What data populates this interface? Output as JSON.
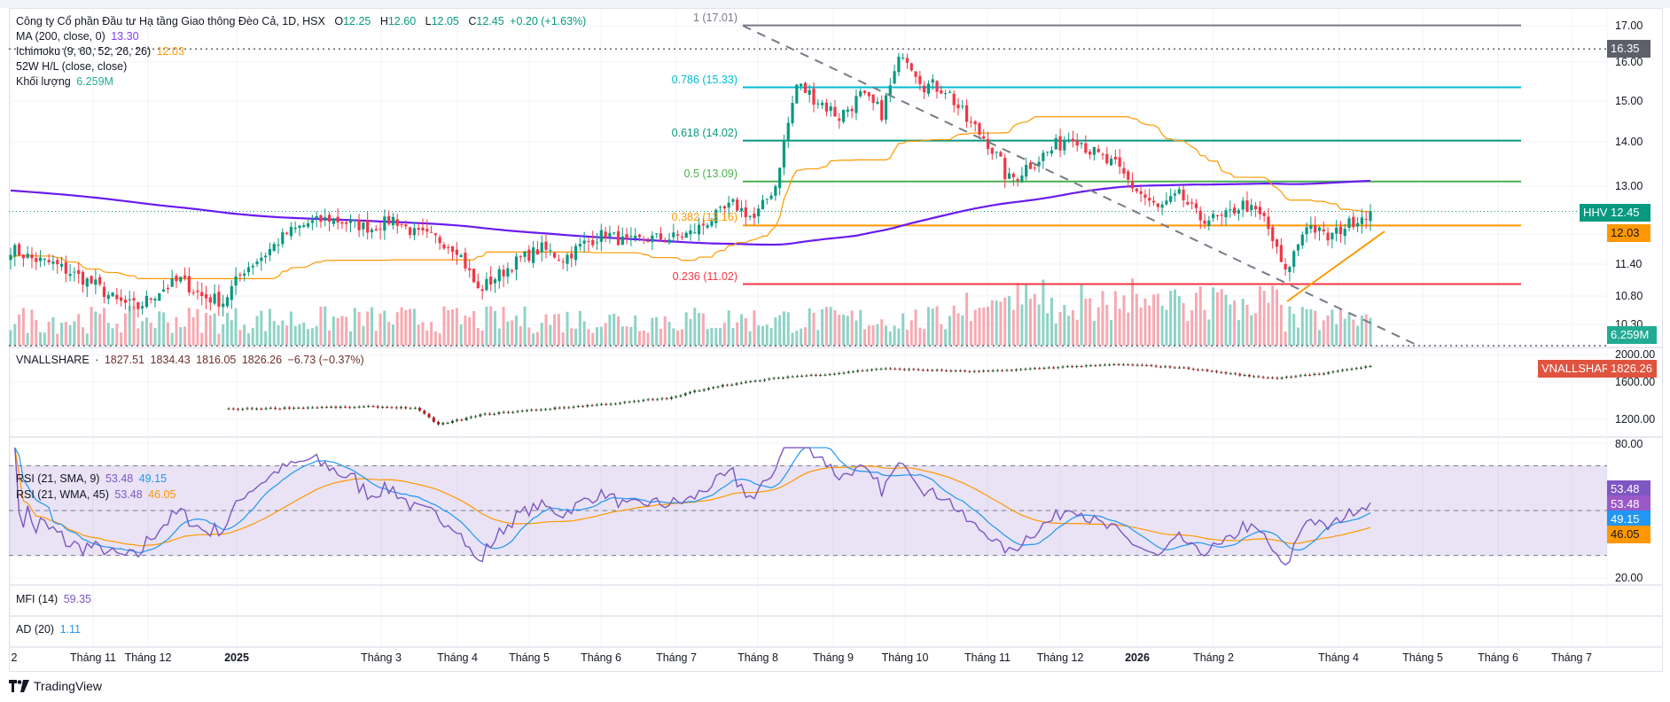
{
  "legend": {
    "title": "Công ty Cổ phần Đầu tư Hạ tầng Giao thông Đèo Cả, 1D, HSX",
    "open_label": "O",
    "open": "12.25",
    "high_label": "H",
    "high": "12.60",
    "low_label": "L",
    "low": "12.05",
    "close_label": "C",
    "close": "12.45",
    "change": "+0.20 (+1.63%)",
    "ma_label": "MA (200, close, 0)",
    "ma_value": "13.30",
    "ichimoku_label": "Ichimoku (9, 60, 52, 26, 26)",
    "ichimoku_value": "12.03",
    "hl_label": "52W H/L (close, close)",
    "volume_label": "Khối lượng",
    "volume_value": "6.259M"
  },
  "index_legend": {
    "name": "VNALLSHARE",
    "dot": "·",
    "open": "1827.51",
    "high": "1834.43",
    "low": "1816.05",
    "close": "1826.26",
    "change": "−6.73 (−0.37%)"
  },
  "rsi_legend": [
    {
      "label": "RSI (21, SMA, 9)",
      "v1": "53.48",
      "v2": "49.15"
    },
    {
      "label": "RSI (21, WMA, 45)",
      "v1": "53.48",
      "v2": "46.05"
    }
  ],
  "mfi_legend": {
    "label": "MFI (14)",
    "value": "59.35"
  },
  "ad_legend": {
    "label": "AD (20)",
    "value": "1.11"
  },
  "price_axis": [
    "17.00",
    "16.00",
    "15.00",
    "14.00",
    "13.00",
    "11.40",
    "10.80",
    "10.30"
  ],
  "index_axis": [
    "2000.00",
    "1600.00",
    "1200.00"
  ],
  "rsi_axis": [
    "80.00",
    "20.00"
  ],
  "badges": {
    "high_line": "16.35",
    "hhv_label": "HHV",
    "last_price": "12.45",
    "ichimoku": "12.03",
    "volume": "6.259M",
    "index_name": "VNALLSHARE",
    "index_value": "1826.26",
    "rsi1": "53.48",
    "rsi2": "53.48",
    "rsi_sma": "49.15",
    "rsi_wma": "46.05"
  },
  "fib_levels": [
    {
      "label": "1 (17.01)",
      "price": 17.01,
      "color": "#787b86"
    },
    {
      "label": "0.786 (15.33)",
      "price": 15.33,
      "color": "#00bcd4"
    },
    {
      "label": "0.618 (14.02)",
      "price": 14.02,
      "color": "#089981"
    },
    {
      "label": "0.5 (13.09)",
      "price": 13.09,
      "color": "#4caf50"
    },
    {
      "label": "0.382 (12.16)",
      "price": 12.16,
      "color": "#ff9800"
    },
    {
      "label": "0.236 (11.02)",
      "price": 11.02,
      "color": "#f23645"
    }
  ],
  "time_axis": [
    {
      "label": "2",
      "bold": false
    },
    {
      "label": "Tháng 11",
      "bold": false
    },
    {
      "label": "Tháng 12",
      "bold": false
    },
    {
      "label": "2025",
      "bold": true
    },
    {
      "label": "Tháng 3",
      "bold": false
    },
    {
      "label": "Tháng 4",
      "bold": false
    },
    {
      "label": "Tháng 5",
      "bold": false
    },
    {
      "label": "Tháng 6",
      "bold": false
    },
    {
      "label": "Tháng 7",
      "bold": false
    },
    {
      "label": "Tháng 8",
      "bold": false
    },
    {
      "label": "Tháng 9",
      "bold": false
    },
    {
      "label": "Tháng 10",
      "bold": false
    },
    {
      "label": "Tháng 11",
      "bold": false
    },
    {
      "label": "Tháng 12",
      "bold": false
    },
    {
      "label": "2026",
      "bold": true
    },
    {
      "label": "Tháng 2",
      "bold": false
    },
    {
      "label": "Tháng 4",
      "bold": false
    },
    {
      "label": "Tháng 5",
      "bold": false
    },
    {
      "label": "Tháng 6",
      "bold": false
    },
    {
      "label": "Tháng 7",
      "bold": false
    }
  ],
  "logo": {
    "text": "TradingView"
  },
  "colors": {
    "up": "#089981",
    "down": "#f23645",
    "vol_up": "#8fd3c6",
    "vol_down": "#f7a9b1",
    "ma": "#6a1bef",
    "ichimoku": "#ff9800",
    "rsi": "#7e57c2",
    "rsi_sma": "#2196f3",
    "rsi_wma": "#ff9800",
    "rsi_band": "#7e57c2",
    "index_badge": "#e0533f",
    "hhv": "#089981",
    "high_badge": "#5d606b"
  },
  "chart_data": {
    "type": "candlestick",
    "symbol": "HHV",
    "price_scale": "log",
    "price_range": [
      10.3,
      17.0
    ],
    "weekly_closes": [
      11.7,
      11.5,
      11.4,
      11.2,
      11.0,
      10.7,
      10.6,
      10.9,
      11.1,
      10.8,
      10.7,
      11.3,
      11.6,
      12.0,
      12.2,
      12.3,
      12.2,
      12.1,
      12.3,
      12.0,
      11.9,
      11.7,
      10.9,
      11.2,
      11.5,
      11.7,
      11.5,
      11.8,
      12.0,
      11.8,
      11.9,
      11.9,
      12.0,
      12.3,
      12.6,
      12.3,
      13.0,
      15.4,
      15.0,
      14.6,
      15.1,
      14.7,
      16.3,
      15.4,
      15.3,
      14.5,
      14.0,
      13.1,
      13.5,
      13.8,
      14.2,
      13.7,
      13.4,
      12.9,
      12.5,
      12.8,
      12.3,
      12.3,
      12.6,
      12.3,
      11.2,
      12.2,
      11.9,
      12.2,
      12.45
    ],
    "index_weekly_closes": [
      1300,
      1305,
      1310,
      1315,
      1320,
      1318,
      1325,
      1320,
      1310,
      1150,
      1200,
      1250,
      1270,
      1290,
      1310,
      1330,
      1350,
      1370,
      1400,
      1420,
      1500,
      1560,
      1600,
      1640,
      1680,
      1700,
      1720,
      1760,
      1790,
      1780,
      1770,
      1760,
      1750,
      1760,
      1780,
      1800,
      1820,
      1830,
      1850,
      1840,
      1820,
      1800,
      1760,
      1720,
      1680,
      1660,
      1700,
      1720,
      1780,
      1826.26
    ],
    "index_range": [
      1200,
      2000
    ],
    "rsi_range": [
      20,
      80
    ],
    "rsi_bands": [
      30,
      50,
      70
    ],
    "last_volume": "6.259M"
  }
}
